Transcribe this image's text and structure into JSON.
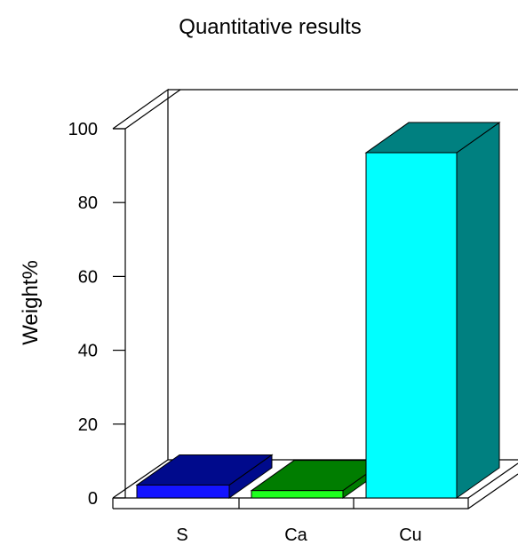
{
  "chart_data": {
    "type": "bar",
    "title": "Quantitative results",
    "xlabel": "",
    "ylabel": "Weight%",
    "categories": [
      "S",
      "Ca",
      "Cu"
    ],
    "values": [
      3.5,
      2.0,
      93.5
    ],
    "ylim": [
      0,
      100
    ],
    "yticks": [
      0,
      20,
      40,
      60,
      80,
      100
    ],
    "grid": false,
    "legend": "none",
    "style": "3d",
    "colors": [
      {
        "front": "#1414FF",
        "top": "#000A8C",
        "side": "#000A8C"
      },
      {
        "front": "#1EFF1E",
        "top": "#007D00",
        "side": "#007D00"
      },
      {
        "front": "#00FFFF",
        "top": "#008080",
        "side": "#008080"
      }
    ]
  }
}
